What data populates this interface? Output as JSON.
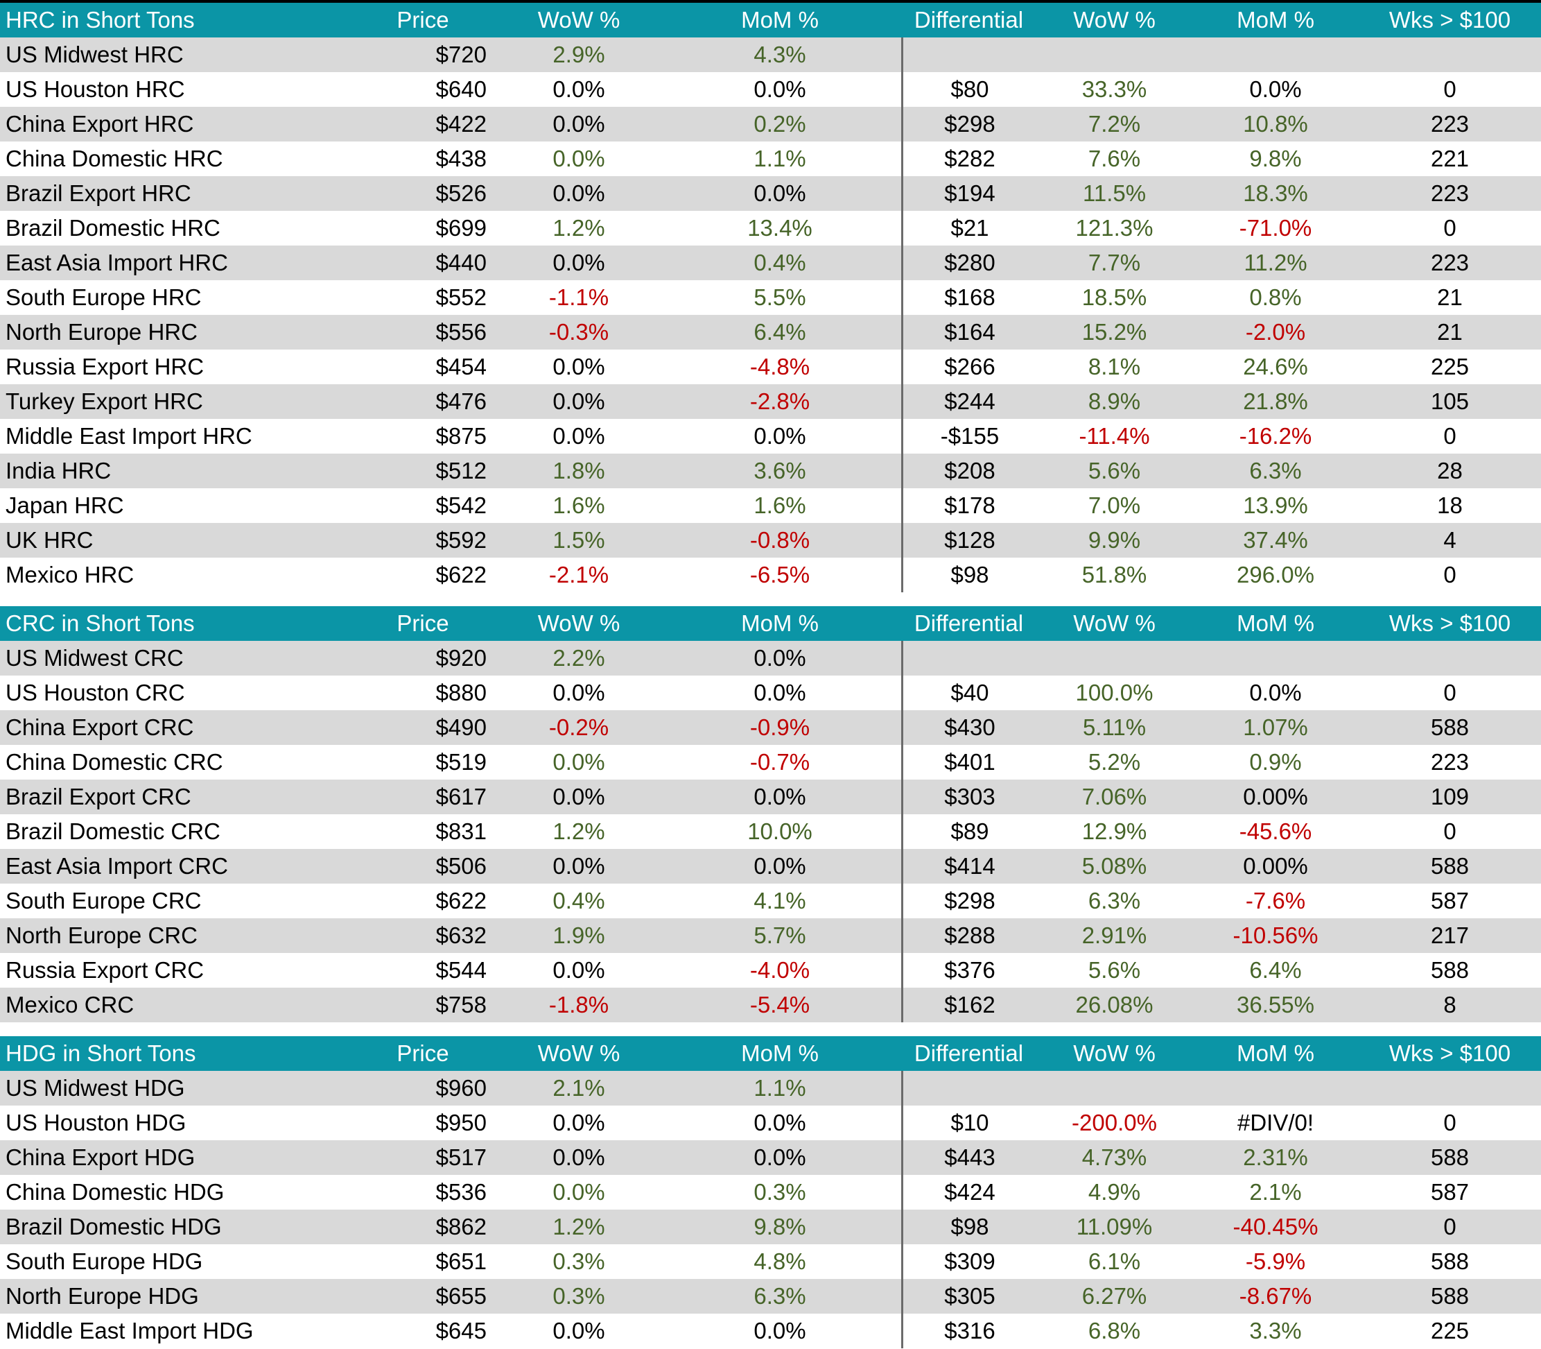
{
  "palette": {
    "header_bg": "#0b95a6",
    "header_text": "#ffffff",
    "stripe_gray": "#d9d9d9",
    "stripe_white": "#ffffff",
    "positive_green": "#466428",
    "negative_red": "#c00000",
    "neutral_black": "#000000",
    "divider_line": "#6b6b6b",
    "top_border": "#000000"
  },
  "columns": [
    "Price",
    "WoW %",
    "MoM %",
    "Differential",
    "WoW %",
    "MoM %",
    "Wks > $100"
  ],
  "sections": [
    {
      "title": "HRC in Short Tons",
      "rows": [
        [
          [
            "US Midwest HRC",
            "k"
          ],
          [
            "$720",
            "k"
          ],
          [
            "2.9%",
            "g"
          ],
          [
            "4.3%",
            "g"
          ],
          [
            "",
            "k"
          ],
          [
            "",
            "k"
          ],
          [
            "",
            "k"
          ],
          [
            "",
            "k"
          ]
        ],
        [
          [
            "US Houston HRC",
            "k"
          ],
          [
            "$640",
            "k"
          ],
          [
            "0.0%",
            "k"
          ],
          [
            "0.0%",
            "k"
          ],
          [
            "$80",
            "k"
          ],
          [
            "33.3%",
            "g"
          ],
          [
            "0.0%",
            "k"
          ],
          [
            "0",
            "k"
          ]
        ],
        [
          [
            "China Export HRC",
            "k"
          ],
          [
            "$422",
            "k"
          ],
          [
            "0.0%",
            "k"
          ],
          [
            "0.2%",
            "g"
          ],
          [
            "$298",
            "k"
          ],
          [
            "7.2%",
            "g"
          ],
          [
            "10.8%",
            "g"
          ],
          [
            "223",
            "k"
          ]
        ],
        [
          [
            "China Domestic HRC",
            "k"
          ],
          [
            "$438",
            "k"
          ],
          [
            "0.0%",
            "g"
          ],
          [
            "1.1%",
            "g"
          ],
          [
            "$282",
            "k"
          ],
          [
            "7.6%",
            "g"
          ],
          [
            "9.8%",
            "g"
          ],
          [
            "221",
            "k"
          ]
        ],
        [
          [
            "Brazil Export HRC",
            "k"
          ],
          [
            "$526",
            "k"
          ],
          [
            "0.0%",
            "k"
          ],
          [
            "0.0%",
            "k"
          ],
          [
            "$194",
            "k"
          ],
          [
            "11.5%",
            "g"
          ],
          [
            "18.3%",
            "g"
          ],
          [
            "223",
            "k"
          ]
        ],
        [
          [
            "Brazil Domestic HRC",
            "k"
          ],
          [
            "$699",
            "k"
          ],
          [
            "1.2%",
            "g"
          ],
          [
            "13.4%",
            "g"
          ],
          [
            "$21",
            "k"
          ],
          [
            "121.3%",
            "g"
          ],
          [
            "-71.0%",
            "r"
          ],
          [
            "0",
            "k"
          ]
        ],
        [
          [
            "East Asia Import HRC",
            "k"
          ],
          [
            "$440",
            "k"
          ],
          [
            "0.0%",
            "k"
          ],
          [
            "0.4%",
            "g"
          ],
          [
            "$280",
            "k"
          ],
          [
            "7.7%",
            "g"
          ],
          [
            "11.2%",
            "g"
          ],
          [
            "223",
            "k"
          ]
        ],
        [
          [
            "South Europe HRC",
            "k"
          ],
          [
            "$552",
            "k"
          ],
          [
            "-1.1%",
            "r"
          ],
          [
            "5.5%",
            "g"
          ],
          [
            "$168",
            "k"
          ],
          [
            "18.5%",
            "g"
          ],
          [
            "0.8%",
            "g"
          ],
          [
            "21",
            "k"
          ]
        ],
        [
          [
            "North Europe HRC",
            "k"
          ],
          [
            "$556",
            "k"
          ],
          [
            "-0.3%",
            "r"
          ],
          [
            "6.4%",
            "g"
          ],
          [
            "$164",
            "k"
          ],
          [
            "15.2%",
            "g"
          ],
          [
            "-2.0%",
            "r"
          ],
          [
            "21",
            "k"
          ]
        ],
        [
          [
            "Russia Export HRC",
            "k"
          ],
          [
            "$454",
            "k"
          ],
          [
            "0.0%",
            "k"
          ],
          [
            "-4.8%",
            "r"
          ],
          [
            "$266",
            "k"
          ],
          [
            "8.1%",
            "g"
          ],
          [
            "24.6%",
            "g"
          ],
          [
            "225",
            "k"
          ]
        ],
        [
          [
            "Turkey Export HRC",
            "k"
          ],
          [
            "$476",
            "k"
          ],
          [
            "0.0%",
            "k"
          ],
          [
            "-2.8%",
            "r"
          ],
          [
            "$244",
            "k"
          ],
          [
            "8.9%",
            "g"
          ],
          [
            "21.8%",
            "g"
          ],
          [
            "105",
            "k"
          ]
        ],
        [
          [
            "Middle East Import HRC",
            "k"
          ],
          [
            "$875",
            "k"
          ],
          [
            "0.0%",
            "k"
          ],
          [
            "0.0%",
            "k"
          ],
          [
            "-$155",
            "k"
          ],
          [
            "-11.4%",
            "r"
          ],
          [
            "-16.2%",
            "r"
          ],
          [
            "0",
            "k"
          ]
        ],
        [
          [
            "India HRC",
            "k"
          ],
          [
            "$512",
            "k"
          ],
          [
            "1.8%",
            "g"
          ],
          [
            "3.6%",
            "g"
          ],
          [
            "$208",
            "k"
          ],
          [
            "5.6%",
            "g"
          ],
          [
            "6.3%",
            "g"
          ],
          [
            "28",
            "k"
          ]
        ],
        [
          [
            "Japan HRC",
            "k"
          ],
          [
            "$542",
            "k"
          ],
          [
            "1.6%",
            "g"
          ],
          [
            "1.6%",
            "g"
          ],
          [
            "$178",
            "k"
          ],
          [
            "7.0%",
            "g"
          ],
          [
            "13.9%",
            "g"
          ],
          [
            "18",
            "k"
          ]
        ],
        [
          [
            "UK HRC",
            "k"
          ],
          [
            "$592",
            "k"
          ],
          [
            "1.5%",
            "g"
          ],
          [
            "-0.8%",
            "r"
          ],
          [
            "$128",
            "k"
          ],
          [
            "9.9%",
            "g"
          ],
          [
            "37.4%",
            "g"
          ],
          [
            "4",
            "k"
          ]
        ],
        [
          [
            "Mexico HRC",
            "k"
          ],
          [
            "$622",
            "k"
          ],
          [
            "-2.1%",
            "r"
          ],
          [
            "-6.5%",
            "r"
          ],
          [
            "$98",
            "k"
          ],
          [
            "51.8%",
            "g"
          ],
          [
            "296.0%",
            "g"
          ],
          [
            "0",
            "k"
          ]
        ]
      ]
    },
    {
      "title": "CRC in Short Tons",
      "rows": [
        [
          [
            "US Midwest CRC",
            "k"
          ],
          [
            "$920",
            "k"
          ],
          [
            "2.2%",
            "g"
          ],
          [
            "0.0%",
            "k"
          ],
          [
            "",
            "k"
          ],
          [
            "",
            "k"
          ],
          [
            "",
            "k"
          ],
          [
            "",
            "k"
          ]
        ],
        [
          [
            "US Houston CRC",
            "k"
          ],
          [
            "$880",
            "k"
          ],
          [
            "0.0%",
            "k"
          ],
          [
            "0.0%",
            "k"
          ],
          [
            "$40",
            "k"
          ],
          [
            "100.0%",
            "g"
          ],
          [
            "0.0%",
            "k"
          ],
          [
            "0",
            "k"
          ]
        ],
        [
          [
            "China Export CRC",
            "k"
          ],
          [
            "$490",
            "k"
          ],
          [
            "-0.2%",
            "r"
          ],
          [
            "-0.9%",
            "r"
          ],
          [
            "$430",
            "k"
          ],
          [
            "5.11%",
            "g"
          ],
          [
            "1.07%",
            "g"
          ],
          [
            "588",
            "k"
          ]
        ],
        [
          [
            "China Domestic CRC",
            "k"
          ],
          [
            "$519",
            "k"
          ],
          [
            "0.0%",
            "g"
          ],
          [
            "-0.7%",
            "r"
          ],
          [
            "$401",
            "k"
          ],
          [
            "5.2%",
            "g"
          ],
          [
            "0.9%",
            "g"
          ],
          [
            "223",
            "k"
          ]
        ],
        [
          [
            "Brazil Export CRC",
            "k"
          ],
          [
            "$617",
            "k"
          ],
          [
            "0.0%",
            "k"
          ],
          [
            "0.0%",
            "k"
          ],
          [
            "$303",
            "k"
          ],
          [
            "7.06%",
            "g"
          ],
          [
            "0.00%",
            "k"
          ],
          [
            "109",
            "k"
          ]
        ],
        [
          [
            "Brazil Domestic CRC",
            "k"
          ],
          [
            "$831",
            "k"
          ],
          [
            "1.2%",
            "g"
          ],
          [
            "10.0%",
            "g"
          ],
          [
            "$89",
            "k"
          ],
          [
            "12.9%",
            "g"
          ],
          [
            "-45.6%",
            "r"
          ],
          [
            "0",
            "k"
          ]
        ],
        [
          [
            "East Asia Import CRC",
            "k"
          ],
          [
            "$506",
            "k"
          ],
          [
            "0.0%",
            "k"
          ],
          [
            "0.0%",
            "k"
          ],
          [
            "$414",
            "k"
          ],
          [
            "5.08%",
            "g"
          ],
          [
            "0.00%",
            "k"
          ],
          [
            "588",
            "k"
          ]
        ],
        [
          [
            "South Europe CRC",
            "k"
          ],
          [
            "$622",
            "k"
          ],
          [
            "0.4%",
            "g"
          ],
          [
            "4.1%",
            "g"
          ],
          [
            "$298",
            "k"
          ],
          [
            "6.3%",
            "g"
          ],
          [
            "-7.6%",
            "r"
          ],
          [
            "587",
            "k"
          ]
        ],
        [
          [
            "North Europe CRC",
            "k"
          ],
          [
            "$632",
            "k"
          ],
          [
            "1.9%",
            "g"
          ],
          [
            "5.7%",
            "g"
          ],
          [
            "$288",
            "k"
          ],
          [
            "2.91%",
            "g"
          ],
          [
            "-10.56%",
            "r"
          ],
          [
            "217",
            "k"
          ]
        ],
        [
          [
            "Russia Export CRC",
            "k"
          ],
          [
            "$544",
            "k"
          ],
          [
            "0.0%",
            "k"
          ],
          [
            "-4.0%",
            "r"
          ],
          [
            "$376",
            "k"
          ],
          [
            "5.6%",
            "g"
          ],
          [
            "6.4%",
            "g"
          ],
          [
            "588",
            "k"
          ]
        ],
        [
          [
            "Mexico CRC",
            "k"
          ],
          [
            "$758",
            "k"
          ],
          [
            "-1.8%",
            "r"
          ],
          [
            "-5.4%",
            "r"
          ],
          [
            "$162",
            "k"
          ],
          [
            "26.08%",
            "g"
          ],
          [
            "36.55%",
            "g"
          ],
          [
            "8",
            "k"
          ]
        ]
      ]
    },
    {
      "title": "HDG in Short Tons",
      "rows": [
        [
          [
            "US Midwest HDG",
            "k"
          ],
          [
            "$960",
            "k"
          ],
          [
            "2.1%",
            "g"
          ],
          [
            "1.1%",
            "g"
          ],
          [
            "",
            "k"
          ],
          [
            "",
            "k"
          ],
          [
            "",
            "k"
          ],
          [
            "",
            "k"
          ]
        ],
        [
          [
            "US Houston HDG",
            "k"
          ],
          [
            "$950",
            "k"
          ],
          [
            "0.0%",
            "k"
          ],
          [
            "0.0%",
            "k"
          ],
          [
            "$10",
            "k"
          ],
          [
            "-200.0%",
            "r"
          ],
          [
            "#DIV/0!",
            "k"
          ],
          [
            "0",
            "k"
          ]
        ],
        [
          [
            "China Export HDG",
            "k"
          ],
          [
            "$517",
            "k"
          ],
          [
            "0.0%",
            "k"
          ],
          [
            "0.0%",
            "k"
          ],
          [
            "$443",
            "k"
          ],
          [
            "4.73%",
            "g"
          ],
          [
            "2.31%",
            "g"
          ],
          [
            "588",
            "k"
          ]
        ],
        [
          [
            "China Domestic HDG",
            "k"
          ],
          [
            "$536",
            "k"
          ],
          [
            "0.0%",
            "g"
          ],
          [
            "0.3%",
            "g"
          ],
          [
            "$424",
            "k"
          ],
          [
            "4.9%",
            "g"
          ],
          [
            "2.1%",
            "g"
          ],
          [
            "587",
            "k"
          ]
        ],
        [
          [
            "Brazil Domestic HDG",
            "k"
          ],
          [
            "$862",
            "k"
          ],
          [
            "1.2%",
            "g"
          ],
          [
            "9.8%",
            "g"
          ],
          [
            "$98",
            "k"
          ],
          [
            "11.09%",
            "g"
          ],
          [
            "-40.45%",
            "r"
          ],
          [
            "0",
            "k"
          ]
        ],
        [
          [
            "South Europe HDG",
            "k"
          ],
          [
            "$651",
            "k"
          ],
          [
            "0.3%",
            "g"
          ],
          [
            "4.8%",
            "g"
          ],
          [
            "$309",
            "k"
          ],
          [
            "6.1%",
            "g"
          ],
          [
            "-5.9%",
            "r"
          ],
          [
            "588",
            "k"
          ]
        ],
        [
          [
            "North Europe HDG",
            "k"
          ],
          [
            "$655",
            "k"
          ],
          [
            "0.3%",
            "g"
          ],
          [
            "6.3%",
            "g"
          ],
          [
            "$305",
            "k"
          ],
          [
            "6.27%",
            "g"
          ],
          [
            "-8.67%",
            "r"
          ],
          [
            "588",
            "k"
          ]
        ],
        [
          [
            "Middle East Import HDG",
            "k"
          ],
          [
            "$645",
            "k"
          ],
          [
            "0.0%",
            "k"
          ],
          [
            "0.0%",
            "k"
          ],
          [
            "$316",
            "k"
          ],
          [
            "6.8%",
            "g"
          ],
          [
            "3.3%",
            "g"
          ],
          [
            "225",
            "k"
          ]
        ]
      ]
    }
  ]
}
